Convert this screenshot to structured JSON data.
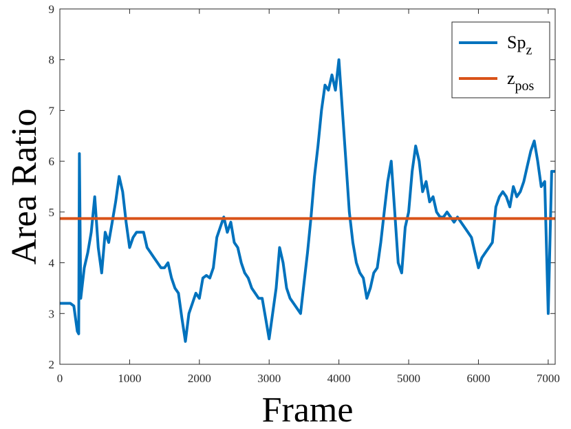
{
  "chart_data": {
    "type": "line",
    "x_label": "Frame",
    "y_label": "Area Ratio",
    "xlim": [
      0,
      7100
    ],
    "ylim": [
      2,
      9
    ],
    "xticks": [
      0,
      1000,
      2000,
      3000,
      4000,
      5000,
      6000,
      7000
    ],
    "yticks": [
      2,
      3,
      4,
      5,
      6,
      7,
      8,
      9
    ],
    "legend": "top-right",
    "series": [
      {
        "name": "Sp",
        "subscript": "z",
        "color": "#0072bd",
        "x": [
          0,
          50,
          100,
          150,
          200,
          250,
          270,
          280,
          300,
          350,
          400,
          450,
          500,
          550,
          600,
          650,
          700,
          750,
          800,
          850,
          900,
          950,
          1000,
          1050,
          1100,
          1150,
          1200,
          1250,
          1300,
          1350,
          1400,
          1450,
          1500,
          1550,
          1600,
          1650,
          1700,
          1750,
          1800,
          1850,
          1900,
          1950,
          2000,
          2050,
          2100,
          2150,
          2200,
          2250,
          2300,
          2350,
          2400,
          2450,
          2500,
          2550,
          2600,
          2650,
          2700,
          2750,
          2800,
          2850,
          2900,
          2950,
          3000,
          3050,
          3100,
          3150,
          3200,
          3250,
          3300,
          3350,
          3400,
          3450,
          3500,
          3550,
          3600,
          3650,
          3700,
          3750,
          3800,
          3850,
          3900,
          3950,
          4000,
          4050,
          4100,
          4150,
          4200,
          4250,
          4300,
          4350,
          4400,
          4450,
          4500,
          4550,
          4600,
          4650,
          4700,
          4750,
          4800,
          4850,
          4900,
          4950,
          5000,
          5050,
          5100,
          5150,
          5200,
          5250,
          5300,
          5350,
          5400,
          5450,
          5500,
          5550,
          5600,
          5650,
          5700,
          5750,
          5800,
          5850,
          5900,
          5950,
          6000,
          6050,
          6100,
          6150,
          6200,
          6250,
          6300,
          6350,
          6400,
          6450,
          6500,
          6550,
          6600,
          6650,
          6700,
          6750,
          6800,
          6850,
          6900,
          6950,
          7000,
          7050,
          7100
        ],
        "values": [
          3.2,
          3.2,
          3.2,
          3.2,
          3.15,
          2.65,
          2.6,
          6.15,
          3.3,
          3.9,
          4.2,
          4.6,
          5.3,
          4.3,
          3.8,
          4.6,
          4.4,
          4.8,
          5.2,
          5.7,
          5.4,
          4.8,
          4.3,
          4.5,
          4.6,
          4.6,
          4.6,
          4.3,
          4.2,
          4.1,
          4.0,
          3.9,
          3.9,
          4.0,
          3.7,
          3.5,
          3.4,
          2.9,
          2.45,
          3.0,
          3.2,
          3.4,
          3.3,
          3.7,
          3.75,
          3.7,
          3.9,
          4.5,
          4.7,
          4.9,
          4.6,
          4.8,
          4.4,
          4.3,
          4.0,
          3.8,
          3.7,
          3.5,
          3.4,
          3.3,
          3.3,
          2.9,
          2.5,
          3.0,
          3.5,
          4.3,
          4.0,
          3.5,
          3.3,
          3.2,
          3.1,
          3.0,
          3.6,
          4.2,
          4.9,
          5.7,
          6.3,
          7.0,
          7.5,
          7.4,
          7.7,
          7.4,
          8.0,
          7.0,
          6.0,
          5.0,
          4.4,
          4.0,
          3.8,
          3.7,
          3.3,
          3.5,
          3.8,
          3.9,
          4.4,
          5.0,
          5.6,
          6.0,
          5.0,
          4.0,
          3.8,
          4.7,
          5.0,
          5.8,
          6.3,
          6.0,
          5.4,
          5.6,
          5.2,
          5.3,
          5.0,
          4.9,
          4.9,
          5.0,
          4.9,
          4.8,
          4.9,
          4.8,
          4.7,
          4.6,
          4.5,
          4.2,
          3.9,
          4.1,
          4.2,
          4.3,
          4.4,
          5.1,
          5.3,
          5.4,
          5.3,
          5.1,
          5.5,
          5.3,
          5.4,
          5.6,
          5.9,
          6.2,
          6.4,
          6.0,
          5.5,
          5.6,
          3.0,
          5.8,
          5.8
        ]
      },
      {
        "name": "z",
        "subscript": "pos",
        "color": "#d95319",
        "x": [
          0,
          7100
        ],
        "values": [
          4.87,
          4.87
        ]
      }
    ]
  }
}
